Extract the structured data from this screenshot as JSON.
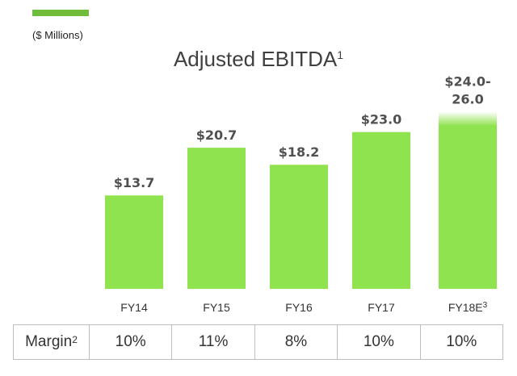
{
  "header": {
    "accent_color": "#6fbd3a",
    "units": "($ Millions)",
    "title": "Adjusted EBITDA",
    "title_footnote": "1"
  },
  "colors": {
    "bar": "#8fe34f",
    "value_label": "#505050",
    "tick_label": "#333333"
  },
  "chart_data": {
    "type": "bar",
    "title": "Adjusted EBITDA",
    "subtitle": "($ Millions)",
    "xlabel": "",
    "ylabel": "",
    "categories": [
      "FY14",
      "FY15",
      "FY16",
      "FY17",
      "FY18E"
    ],
    "category_footnotes": [
      "",
      "",
      "",
      "",
      "3"
    ],
    "values": [
      13.7,
      20.7,
      18.2,
      23.0,
      25.0
    ],
    "value_labels": [
      "$13.7",
      "$20.7",
      "$18.2",
      "$23.0",
      "$24.0-\n26.0"
    ],
    "ranges": [
      null,
      null,
      null,
      null,
      [
        24.0,
        26.0
      ]
    ],
    "ylim": [
      0,
      26
    ],
    "grid": false,
    "legend": "none"
  },
  "margin_row": {
    "label": "Margin",
    "label_footnote": "2",
    "values": [
      "10%",
      "11%",
      "8%",
      "10%",
      "10%"
    ]
  }
}
